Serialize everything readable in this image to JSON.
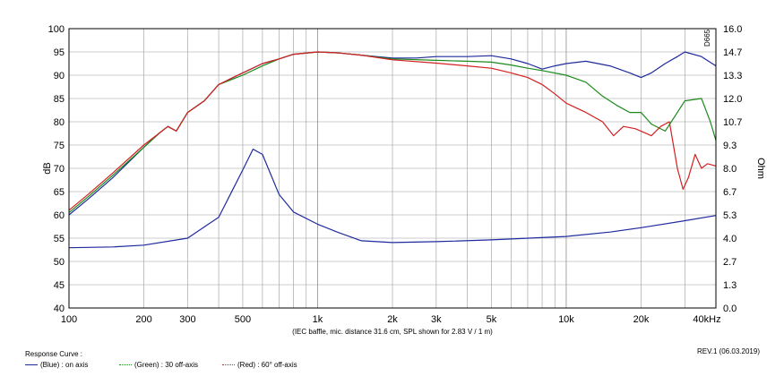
{
  "chart_data": {
    "type": "line",
    "xlabel": "(IEC baffle, mic. distance 31.6 cm, SPL shown for 2.83 V / 1 m)",
    "ylabel_left": "dB",
    "ylabel_right": "Ohm",
    "x_scale": "log",
    "xlim": [
      100,
      40000
    ],
    "ylim_left": [
      40,
      100
    ],
    "ylim_right": [
      0.0,
      16.0
    ],
    "x_tick_values": [
      100,
      200,
      300,
      500,
      1000,
      2000,
      3000,
      5000,
      10000,
      20000,
      40000
    ],
    "x_tick_labels": [
      "100",
      "200",
      "300",
      "500",
      "1k",
      "2k",
      "3k",
      "5k",
      "10k",
      "20k",
      "40kHz"
    ],
    "y_left_ticks": [
      "40",
      "45",
      "50",
      "55",
      "60",
      "65",
      "70",
      "75",
      "80",
      "85",
      "90",
      "95",
      "100"
    ],
    "y_right_ticks": [
      "0.0",
      "1.3",
      "2.7",
      "4.0",
      "5.3",
      "6.7",
      "8.0",
      "9.3",
      "10.7",
      "12.0",
      "13.3",
      "14.7",
      "16.0"
    ],
    "grid": true,
    "side_label": "D665",
    "series": [
      {
        "name": "on axis",
        "color": "#1e2a9c",
        "axis": "left",
        "points": [
          [
            100,
            60
          ],
          [
            120,
            63.5
          ],
          [
            150,
            68
          ],
          [
            200,
            74.5
          ],
          [
            230,
            77.5
          ],
          [
            250,
            79
          ],
          [
            270,
            78
          ],
          [
            300,
            82
          ],
          [
            350,
            84.5
          ],
          [
            400,
            88
          ],
          [
            500,
            90.5
          ],
          [
            600,
            92.5
          ],
          [
            700,
            93.5
          ],
          [
            800,
            94.5
          ],
          [
            1000,
            95
          ],
          [
            1200,
            94.8
          ],
          [
            1500,
            94.3
          ],
          [
            2000,
            93.7
          ],
          [
            2500,
            93.7
          ],
          [
            3000,
            94
          ],
          [
            4000,
            94
          ],
          [
            5000,
            94.2
          ],
          [
            6000,
            93.5
          ],
          [
            7000,
            92.5
          ],
          [
            8000,
            91.3
          ],
          [
            9000,
            92
          ],
          [
            10000,
            92.5
          ],
          [
            12000,
            93
          ],
          [
            15000,
            92
          ],
          [
            18000,
            90.5
          ],
          [
            20000,
            89.5
          ],
          [
            22000,
            90.5
          ],
          [
            25000,
            92.5
          ],
          [
            28000,
            94
          ],
          [
            30000,
            95
          ],
          [
            35000,
            94
          ],
          [
            40000,
            92
          ]
        ]
      },
      {
        "name": "30 off-axis",
        "color": "#1a8a1a",
        "axis": "left",
        "points": [
          [
            100,
            60.5
          ],
          [
            120,
            64
          ],
          [
            150,
            68.5
          ],
          [
            200,
            74.5
          ],
          [
            230,
            77.5
          ],
          [
            250,
            79
          ],
          [
            270,
            78
          ],
          [
            300,
            82
          ],
          [
            350,
            84.5
          ],
          [
            400,
            88
          ],
          [
            500,
            90
          ],
          [
            600,
            92
          ],
          [
            700,
            93.5
          ],
          [
            800,
            94.5
          ],
          [
            1000,
            95
          ],
          [
            1200,
            94.8
          ],
          [
            1500,
            94.3
          ],
          [
            2000,
            93.5
          ],
          [
            3000,
            93.2
          ],
          [
            4000,
            93
          ],
          [
            5000,
            92.8
          ],
          [
            6000,
            92.2
          ],
          [
            7000,
            91.5
          ],
          [
            8000,
            91
          ],
          [
            10000,
            90
          ],
          [
            12000,
            88.5
          ],
          [
            14000,
            85.5
          ],
          [
            16000,
            83.5
          ],
          [
            18000,
            82
          ],
          [
            20000,
            82
          ],
          [
            22000,
            79.5
          ],
          [
            25000,
            78
          ],
          [
            28000,
            82
          ],
          [
            30000,
            84.5
          ],
          [
            35000,
            85
          ],
          [
            38000,
            80
          ],
          [
            40000,
            76
          ]
        ]
      },
      {
        "name": "60° off-axis",
        "color": "#d42020",
        "axis": "left",
        "points": [
          [
            100,
            61
          ],
          [
            120,
            64.5
          ],
          [
            150,
            69
          ],
          [
            200,
            75
          ],
          [
            230,
            77.5
          ],
          [
            250,
            79
          ],
          [
            270,
            78
          ],
          [
            300,
            82
          ],
          [
            350,
            84.5
          ],
          [
            400,
            88
          ],
          [
            500,
            90.5
          ],
          [
            600,
            92.5
          ],
          [
            700,
            93.5
          ],
          [
            800,
            94.5
          ],
          [
            1000,
            95
          ],
          [
            1200,
            94.8
          ],
          [
            1500,
            94.3
          ],
          [
            2000,
            93.3
          ],
          [
            3000,
            92.6
          ],
          [
            4000,
            92
          ],
          [
            5000,
            91.5
          ],
          [
            6000,
            90.5
          ],
          [
            7000,
            89.5
          ],
          [
            8000,
            88
          ],
          [
            9000,
            86
          ],
          [
            10000,
            84
          ],
          [
            12000,
            82
          ],
          [
            14000,
            80
          ],
          [
            15500,
            77
          ],
          [
            17000,
            79
          ],
          [
            19000,
            78.5
          ],
          [
            22000,
            77
          ],
          [
            24000,
            79
          ],
          [
            26000,
            80
          ],
          [
            28000,
            70
          ],
          [
            29500,
            65.5
          ],
          [
            31000,
            68
          ],
          [
            33000,
            73
          ],
          [
            35000,
            70
          ],
          [
            37000,
            71
          ],
          [
            40000,
            70.5
          ]
        ]
      },
      {
        "name": "impedance",
        "color": "#1e2a9c",
        "axis": "right",
        "points": [
          [
            100,
            3.45
          ],
          [
            150,
            3.5
          ],
          [
            200,
            3.6
          ],
          [
            300,
            4.0
          ],
          [
            400,
            5.2
          ],
          [
            500,
            7.9
          ],
          [
            550,
            9.1
          ],
          [
            600,
            8.8
          ],
          [
            700,
            6.5
          ],
          [
            800,
            5.5
          ],
          [
            1000,
            4.8
          ],
          [
            1200,
            4.35
          ],
          [
            1500,
            3.85
          ],
          [
            2000,
            3.75
          ],
          [
            3000,
            3.8
          ],
          [
            5000,
            3.9
          ],
          [
            10000,
            4.1
          ],
          [
            15000,
            4.35
          ],
          [
            20000,
            4.6
          ],
          [
            30000,
            5.0
          ],
          [
            40000,
            5.3
          ]
        ]
      }
    ],
    "legend_title": "Response Curve :",
    "legend": [
      {
        "label": "(Blue)  : on axis",
        "color": "#1e2a9c"
      },
      {
        "label": "(Green) : 30 off-axis",
        "color": "#1a8a1a"
      },
      {
        "label": "(Red) : 60° off-axis",
        "color": "#d42020"
      }
    ],
    "revision": "REV.1 (06.03.2019)"
  }
}
